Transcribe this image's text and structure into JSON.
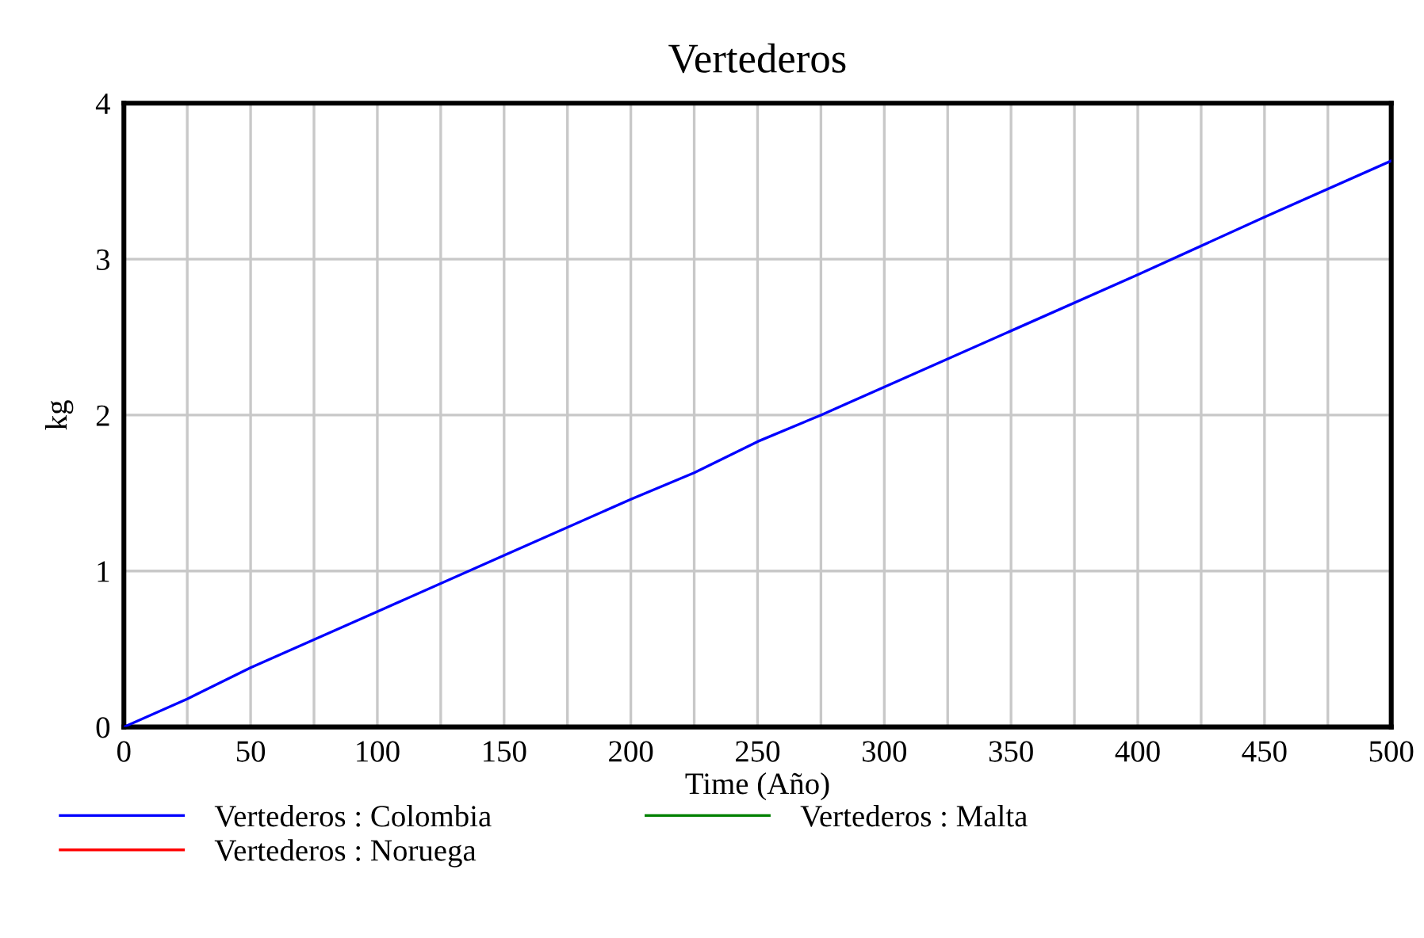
{
  "chart_data": {
    "type": "line",
    "title": "Vertederos",
    "xlabel": "Time (Año)",
    "ylabel": "kg",
    "x": [
      0,
      25,
      50,
      100,
      150,
      200,
      225,
      250,
      275,
      300,
      350,
      400,
      450,
      500
    ],
    "series": [
      {
        "name": "Vertederos : Colombia",
        "color": "#0000ff",
        "values": [
          0,
          0.18,
          0.38,
          0.74,
          1.1,
          1.46,
          1.63,
          1.83,
          2.0,
          2.18,
          2.54,
          2.9,
          3.27,
          3.63
        ]
      },
      {
        "name": "Vertederos : Malta",
        "color": "#008000",
        "values": [
          null,
          null,
          null,
          null,
          null,
          null,
          null,
          null,
          null,
          null,
          null,
          null,
          null,
          null
        ]
      },
      {
        "name": "Vertederos : Noruega",
        "color": "#ff0000",
        "values": [
          null,
          null,
          null,
          null,
          null,
          null,
          null,
          null,
          null,
          null,
          null,
          null,
          null,
          null
        ]
      }
    ],
    "xlim": [
      0,
      500
    ],
    "ylim": [
      0,
      4
    ],
    "xticks": [
      0,
      {
        "value": 25,
        "label": null
      },
      50,
      {
        "value": 75,
        "label": null
      },
      100,
      {
        "value": 125,
        "label": null
      },
      150,
      {
        "value": 175,
        "label": null
      },
      200,
      {
        "value": 225,
        "label": null
      },
      250,
      {
        "value": 275,
        "label": null
      },
      300,
      {
        "value": 325,
        "label": null
      },
      350,
      {
        "value": 375,
        "label": null
      },
      400,
      {
        "value": 425,
        "label": null
      },
      450,
      {
        "value": 475,
        "label": null
      },
      500
    ],
    "yticks": [
      0,
      1,
      2,
      3,
      4
    ],
    "grid": true,
    "legend": "bottom",
    "marker": "none",
    "line_style": "solid"
  }
}
